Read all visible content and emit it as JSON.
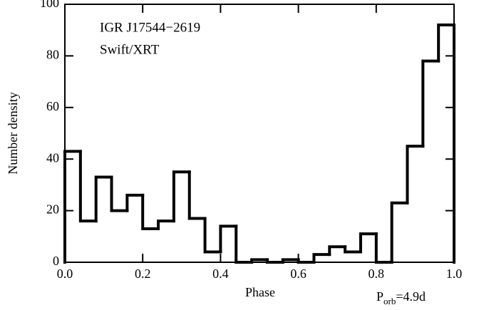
{
  "chart_data": {
    "type": "histogram",
    "annotations": [
      "IGR J17544−2619",
      "Swift/XRT"
    ],
    "period_label": {
      "base": "P",
      "subscript": "orb",
      "suffix": "=4.9d"
    },
    "xlabel": "Phase",
    "ylabel": "Number density",
    "bins": [
      0,
      0.04,
      0.08,
      0.12,
      0.16,
      0.2,
      0.24,
      0.28,
      0.32,
      0.36,
      0.4,
      0.44,
      0.48,
      0.52,
      0.56,
      0.6,
      0.64,
      0.68,
      0.72,
      0.76,
      0.8,
      0.84,
      0.88,
      0.92,
      0.96,
      1
    ],
    "values": [
      43,
      16,
      33,
      20,
      26,
      13,
      16,
      35,
      17,
      4,
      14,
      0,
      1,
      0,
      1,
      0,
      3,
      6,
      4,
      11,
      0,
      23,
      45,
      78,
      92
    ],
    "color": "#000000",
    "xlim": [
      0,
      1
    ],
    "xticks": [
      {
        "value": 0,
        "label": "0.0"
      },
      0.2,
      0.4,
      0.6,
      0.8,
      {
        "value": 1,
        "label": "1.0"
      }
    ],
    "ylim": [
      0,
      100
    ],
    "yticks": [
      0,
      20,
      40,
      60,
      80,
      100
    ]
  }
}
